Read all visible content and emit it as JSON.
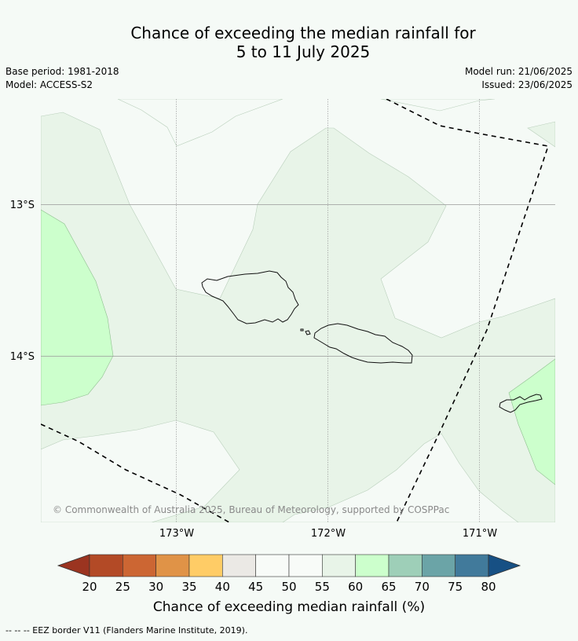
{
  "title": {
    "line1": "Chance of exceeding the median rainfall for",
    "line2": "5 to 11 July 2025"
  },
  "meta": {
    "base_period": "Base period: 1981-2018",
    "model": "Model: ACCESS-S2",
    "model_run": "Model run: 21/06/2025",
    "issued": "Issued: 23/06/2025"
  },
  "map": {
    "longitude_labels": [
      "173°W",
      "172°W",
      "171°W"
    ],
    "latitude_labels": [
      "13°S",
      "14°S"
    ],
    "copyright": "© Commonwealth of Australia 2025, Bureau of Meteorology, supported by COSPPac",
    "colors": {
      "band_45_50": "#f5faf6",
      "band_55_60": "#e8f4e8",
      "band_60_65": "#ccffcc"
    },
    "features": [
      "Samoa (Savai'i)",
      "Samoa (Upolu)",
      "American Samoa (Tutuila)",
      "EEZ border"
    ]
  },
  "colorbar": {
    "label": "Chance of exceeding median rainfall (%)",
    "ticks": [
      "20",
      "25",
      "30",
      "35",
      "40",
      "45",
      "50",
      "55",
      "60",
      "65",
      "70",
      "75",
      "80"
    ],
    "colors": [
      "#b34a26",
      "#cc6633",
      "#e09347",
      "#ffcc66",
      "#ebe9e5",
      "#f8fbf8",
      "#f8fbf8",
      "#e8f4e8",
      "#ccffcc",
      "#9ecfb8",
      "#6ba4a7",
      "#417a9b"
    ],
    "under_color": "#9b3420",
    "over_color": "#175084"
  },
  "footnote": "--  --  -- EEZ border V11 (Flanders Marine Institute, 2019)."
}
